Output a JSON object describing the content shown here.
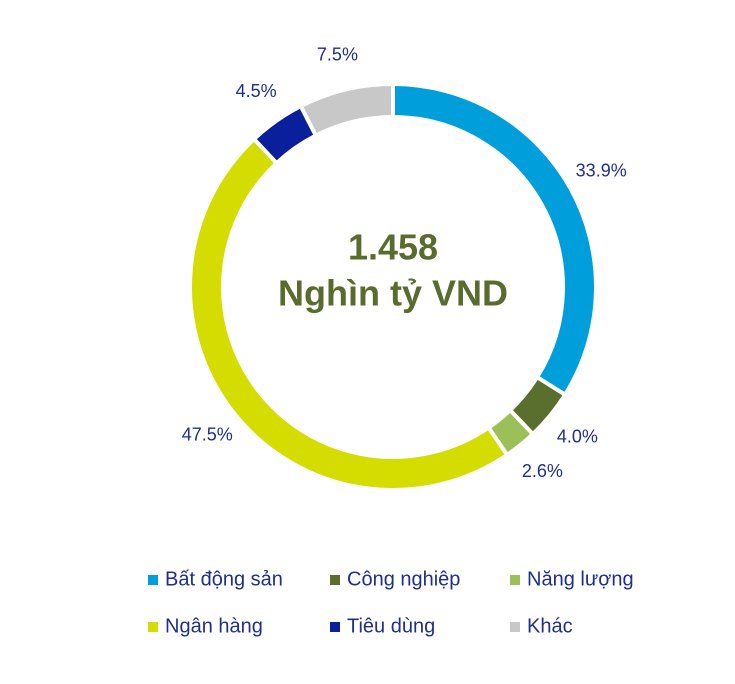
{
  "chart_data": {
    "type": "donut",
    "center_text": [
      "1.458",
      "Nghìn tỷ VND"
    ],
    "categories": [
      "Bất động sản",
      "Công nghiệp",
      "Năng lượng",
      "Ngân hàng",
      "Tiêu dùng",
      "Khác"
    ],
    "values": [
      33.9,
      4.0,
      2.6,
      47.5,
      4.5,
      7.5
    ],
    "value_labels": [
      "33.9%",
      "4.0%",
      "2.6%",
      "47.5%",
      "4.5%",
      "7.5%"
    ],
    "colors": [
      "#009fdb",
      "#5a6e2e",
      "#9bc05a",
      "#d4dc00",
      "#0a1f9c",
      "#c8c8c8"
    ]
  }
}
